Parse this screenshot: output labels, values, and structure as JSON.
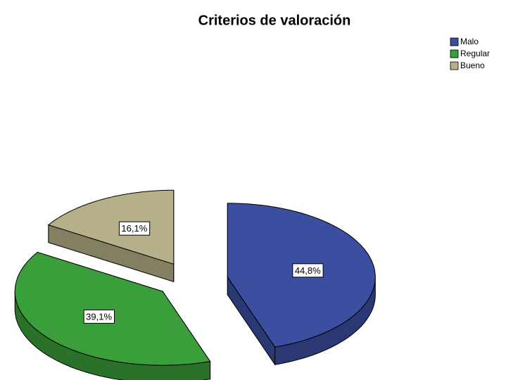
{
  "chart_data": {
    "type": "pie",
    "title": "Criterios de valoración",
    "categories": [
      "Malo",
      "Regular",
      "Bueno"
    ],
    "values": [
      44.8,
      39.1,
      16.1
    ],
    "value_labels": [
      "44,8%",
      "39,1%",
      "16,1%"
    ],
    "colors": [
      "#3b4ea0",
      "#3a9e3a",
      "#b6b08a"
    ],
    "legend": "top-right"
  }
}
